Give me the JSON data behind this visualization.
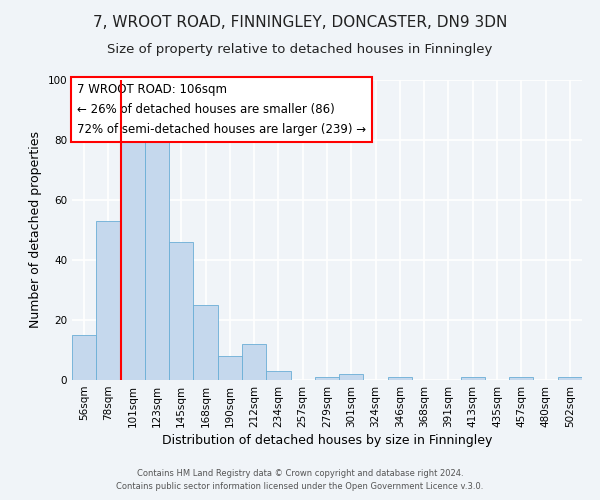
{
  "title": "7, WROOT ROAD, FINNINGLEY, DONCASTER, DN9 3DN",
  "subtitle": "Size of property relative to detached houses in Finningley",
  "xlabel": "Distribution of detached houses by size in Finningley",
  "ylabel": "Number of detached properties",
  "bin_labels": [
    "56sqm",
    "78sqm",
    "101sqm",
    "123sqm",
    "145sqm",
    "168sqm",
    "190sqm",
    "212sqm",
    "234sqm",
    "257sqm",
    "279sqm",
    "301sqm",
    "324sqm",
    "346sqm",
    "368sqm",
    "391sqm",
    "413sqm",
    "435sqm",
    "457sqm",
    "480sqm",
    "502sqm"
  ],
  "bar_values": [
    15,
    53,
    82,
    84,
    46,
    25,
    8,
    12,
    3,
    0,
    1,
    2,
    0,
    1,
    0,
    0,
    1,
    0,
    1,
    0,
    1
  ],
  "bar_color": "#c5d8ed",
  "bar_edge_color": "#6aaed6",
  "background_color": "#f0f4f8",
  "grid_color": "#ffffff",
  "annotation_title": "7 WROOT ROAD: 106sqm",
  "annotation_line1": "← 26% of detached houses are smaller (86)",
  "annotation_line2": "72% of semi-detached houses are larger (239) →",
  "ylim": [
    0,
    100
  ],
  "yticks": [
    0,
    20,
    40,
    60,
    80,
    100
  ],
  "footer1": "Contains HM Land Registry data © Crown copyright and database right 2024.",
  "footer2": "Contains public sector information licensed under the Open Government Licence v.3.0.",
  "title_fontsize": 11,
  "subtitle_fontsize": 9.5,
  "xlabel_fontsize": 9,
  "ylabel_fontsize": 9,
  "tick_fontsize": 7.5,
  "annotation_fontsize": 8.5,
  "footer_fontsize": 6,
  "red_line_x": 1.5
}
